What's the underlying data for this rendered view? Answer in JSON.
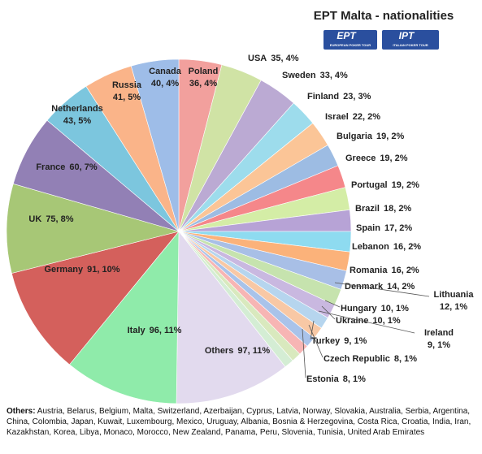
{
  "chart_data": {
    "type": "pie",
    "title": "EPT Malta - nationalities",
    "logos": [
      {
        "name": "EPT",
        "tagline": "EUROPEAN POKER TOUR"
      },
      {
        "name": "IPT",
        "tagline": "ITALIAN POKER TOUR"
      }
    ],
    "categories": [
      "Poland",
      "USA",
      "Sweden",
      "Finland",
      "Israel",
      "Bulgaria",
      "Greece",
      "Portugal",
      "Brazil",
      "Spain",
      "Lebanon",
      "Romania",
      "Denmark",
      "Lithuania",
      "Hungary",
      "Ukraine",
      "Ireland",
      "Turkey",
      "Czech Republic",
      "Estonia",
      "Others",
      "Italy",
      "Germany",
      "UK",
      "France",
      "Netherlands",
      "Russia",
      "Canada"
    ],
    "values": [
      36,
      35,
      33,
      23,
      22,
      19,
      19,
      19,
      18,
      17,
      16,
      16,
      14,
      12,
      10,
      10,
      9,
      9,
      8,
      8,
      97,
      96,
      91,
      75,
      60,
      43,
      41,
      40
    ],
    "value_labels": [
      "36, 4%",
      "35, 4%",
      "33, 4%",
      "23, 3%",
      "22, 2%",
      "19, 2%",
      "19, 2%",
      "19, 2%",
      "18, 2%",
      "17, 2%",
      "16, 2%",
      "16, 2%",
      "14, 2%",
      "12, 1%",
      "10, 1%",
      "10, 1%",
      "9, 1%",
      "9, 1%",
      "8, 1%",
      "8, 1%",
      "97, 11%",
      "96, 11%",
      "91, 10%",
      "75, 8%",
      "60, 7%",
      "43, 5%",
      "41, 5%",
      "40, 4%"
    ],
    "colors": [
      "#F2A09D",
      "#D0E3A5",
      "#BBAAD3",
      "#9DDCEC",
      "#FBC597",
      "#9DBCE3",
      "#F5878A",
      "#D4EDA6",
      "#B7A3D6",
      "#8EDBF0",
      "#FBB27A",
      "#A8BFE6",
      "#C6E3AE",
      "#C9B8E0",
      "#B6D5EE",
      "#F8C8A5",
      "#A9C3EA",
      "#F7B5B4",
      "#D9E9BE",
      "#D4EDD4",
      "#E2DAEE",
      "#8FEBAA",
      "#D4605C",
      "#A7C776",
      "#9280B5",
      "#7CC6DE",
      "#FAB489",
      "#9EBDE8"
    ],
    "footnote": {
      "title": "Others:",
      "text": "Austria, Belarus, Belgium, Malta, Switzerland, Azerbaijan, Cyprus, Latvia, Norway, Slovakia, Australia, Serbia, Argentina, China, Colombia, Japan, Kuwait, Luxembourg, Mexico, Uruguay, Albania, Bosnia & Herzegovina, Costa Rica, Croatia, India, Iran, Kazakhstan, Korea, Libya, Monaco, Morocco, New Zealand, Panama, Peru, Slovenia, Tunisia, United Arab Emirates"
    }
  }
}
